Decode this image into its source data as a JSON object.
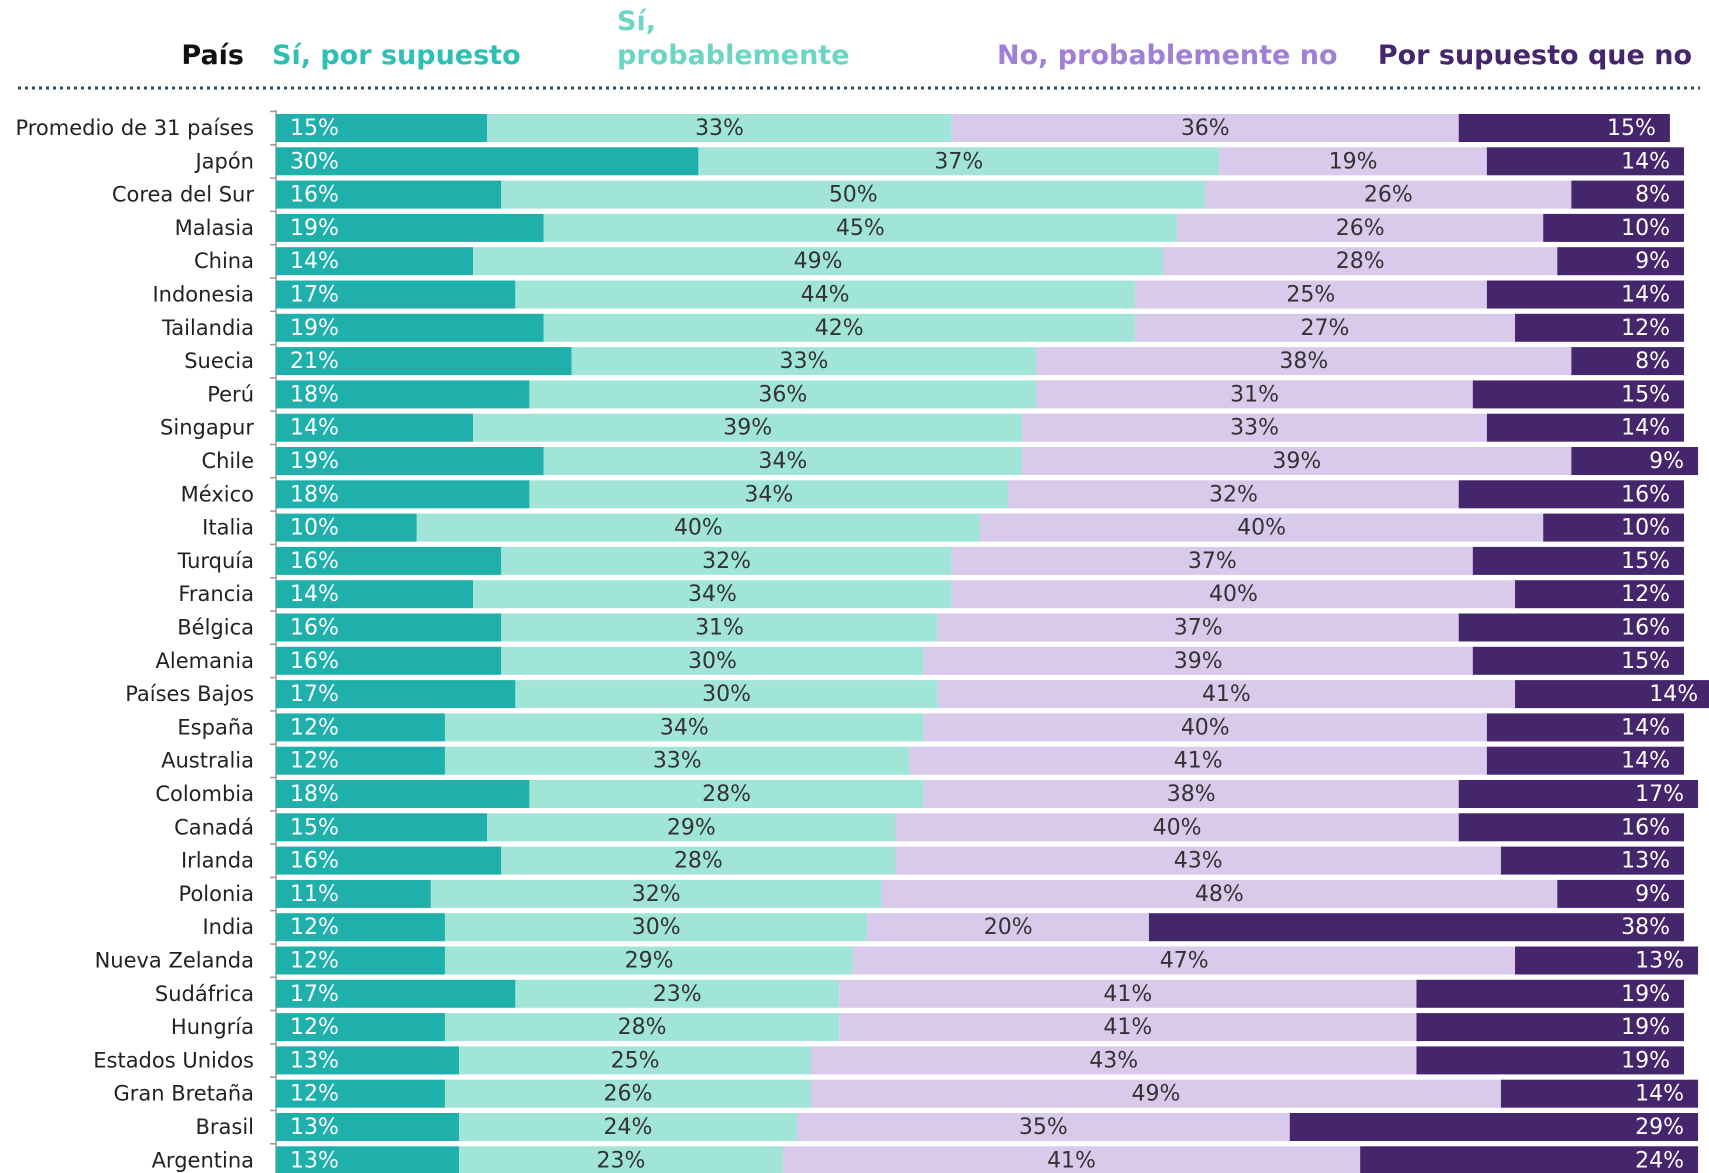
{
  "chart_data": {
    "type": "stacked_bar_horizontal",
    "category_label": "País",
    "categories": [
      "Promedio de 31 países",
      "Japón",
      "Corea del Sur",
      "Malasia",
      "China",
      "Indonesia",
      "Tailandia",
      "Suecia",
      "Perú",
      "Singapur",
      "Chile",
      "México",
      "Italia",
      "Turquía",
      "Francia",
      "Bélgica",
      "Alemania",
      "Países Bajos",
      "España",
      "Australia",
      "Colombia",
      "Canadá",
      "Irlanda",
      "Polonia",
      "India",
      "Nueva Zelanda",
      "Sudáfrica",
      "Hungría",
      "Estados Unidos",
      "Gran Bretaña",
      "Brasil",
      "Argentina"
    ],
    "series": [
      {
        "name": "Sí, por supuesto",
        "color": "#1fb0ac",
        "label_color": "#2fc0b3",
        "text_color": "#ffffff",
        "values": [
          15,
          30,
          16,
          19,
          14,
          17,
          19,
          21,
          18,
          14,
          19,
          18,
          10,
          16,
          14,
          16,
          16,
          17,
          12,
          12,
          18,
          15,
          16,
          11,
          12,
          12,
          17,
          12,
          13,
          12,
          13,
          13
        ],
        "value_labels": [
          "15%",
          "30%",
          "16%",
          "19%",
          "14%",
          "17%",
          "19%",
          "21%",
          "18%",
          "14%",
          "19%",
          "18%",
          "10%",
          "16%",
          "14%",
          "16%",
          "16%",
          "17%",
          "12%",
          "12%",
          "18%",
          "15%",
          "16%",
          "11%",
          "12%",
          "12%",
          "17%",
          "12%",
          "13%",
          "12%",
          "13%",
          "13%"
        ]
      },
      {
        "name": "Sí, probablemente",
        "color": "#a0e5d8",
        "label_color": "#6dd5c4",
        "text_color": "#333333",
        "values": [
          33,
          37,
          50,
          45,
          49,
          44,
          42,
          33,
          36,
          39,
          34,
          34,
          40,
          32,
          34,
          31,
          30,
          30,
          34,
          33,
          28,
          29,
          28,
          32,
          30,
          29,
          23,
          28,
          25,
          26,
          24,
          23
        ],
        "value_labels": [
          "33%",
          "37%",
          "50%",
          "45%",
          "49%",
          "44%",
          "42%",
          "33%",
          "36%",
          "39%",
          "34%",
          "34%",
          "40%",
          "32%",
          "34%",
          "31%",
          "30%",
          "30%",
          "34%",
          "33%",
          "28%",
          "29%",
          "28%",
          "32%",
          "30%",
          "29%",
          "23%",
          "28%",
          "25%",
          "26%",
          "24%",
          "23%"
        ]
      },
      {
        "name": "No, probablemente no",
        "color": "#d9c9eb",
        "label_color": "#a07fd5",
        "text_color": "#333333",
        "values": [
          36,
          19,
          26,
          26,
          28,
          25,
          27,
          38,
          31,
          33,
          39,
          32,
          40,
          37,
          40,
          37,
          39,
          41,
          40,
          41,
          38,
          40,
          43,
          48,
          20,
          47,
          41,
          41,
          43,
          49,
          35,
          41
        ],
        "value_labels": [
          "36%",
          "19%",
          "26%",
          "26%",
          "28%",
          "25%",
          "27%",
          "38%",
          "31%",
          "33%",
          "39%",
          "32%",
          "40%",
          "37%",
          "40%",
          "37%",
          "39%",
          "41%",
          "40%",
          "41%",
          "38%",
          "40%",
          "43%",
          "48%",
          "20%",
          "47%",
          "41%",
          "41%",
          "43%",
          "49%",
          "35%",
          "41%"
        ]
      },
      {
        "name": "Por supuesto que no",
        "color": "#45256b",
        "label_color": "#45256b",
        "text_color": "#ffffff",
        "values": [
          15,
          14,
          8,
          10,
          9,
          14,
          12,
          8,
          15,
          14,
          9,
          16,
          10,
          15,
          12,
          16,
          15,
          14,
          14,
          14,
          17,
          16,
          13,
          9,
          38,
          13,
          19,
          19,
          19,
          14,
          29,
          24
        ],
        "value_labels": [
          "15%",
          "14%",
          "8%",
          "10%",
          "9%",
          "14%",
          "12%",
          "8%",
          "15%",
          "14%",
          "9%",
          "16%",
          "10%",
          "15%",
          "12%",
          "16%",
          "15%",
          "14%",
          "14%",
          "14%",
          "17%",
          "16%",
          "13%",
          "9%",
          "38%",
          "13%",
          "19%",
          "19%",
          "19%",
          "14%",
          "29%",
          "24%"
        ]
      }
    ]
  }
}
